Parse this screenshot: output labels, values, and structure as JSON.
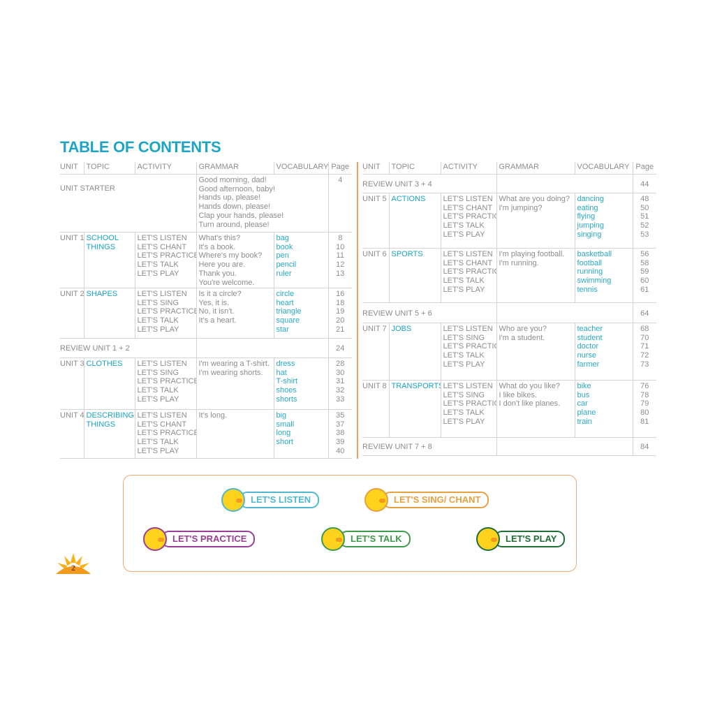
{
  "title": "TABLE OF CONTENTS",
  "headers": [
    "UNIT",
    "TOPIC",
    "ACTIVITY",
    "GRAMMAR",
    "VOCABULARY",
    "Page"
  ],
  "left_rows": [
    {
      "type": "starter",
      "label": "UNIT STARTER",
      "grammar": [
        "Good morning, dad!",
        "Good afternoon, baby!",
        "Hands up, please!",
        "Hands down, please!",
        "Clap your hands, please!",
        "Turn around, please!"
      ],
      "pages": [
        "4"
      ]
    },
    {
      "type": "unit",
      "unit": "UNIT 1",
      "topic": [
        "SCHOOL",
        "THINGS"
      ],
      "activities": [
        "LET'S LISTEN",
        "LET'S CHANT",
        "LET'S PRACTICE",
        "LET'S TALK",
        "LET'S PLAY"
      ],
      "grammar": [
        "What's this?",
        "It's a book.",
        "Where's my book?",
        "Here you are.",
        "Thank you.",
        "You're welcome."
      ],
      "vocab": [
        "bag",
        "book",
        "pen",
        "pencil",
        "ruler"
      ],
      "pages": [
        "8",
        "10",
        "11",
        "12",
        "13"
      ]
    },
    {
      "type": "unit",
      "unit": "UNIT 2",
      "topic": [
        "SHAPES"
      ],
      "activities": [
        "LET'S LISTEN",
        "LET'S SING",
        "LET'S PRACTICE",
        "LET'S TALK",
        "LET'S PLAY"
      ],
      "grammar": [
        "Is it a circle?",
        "Yes, it is.",
        "No, it isn't.",
        "It's a heart."
      ],
      "vocab": [
        "circle",
        "heart",
        "triangle",
        "square",
        "star"
      ],
      "pages": [
        "16",
        "18",
        "19",
        "20",
        "21"
      ]
    },
    {
      "type": "review",
      "label": "REVIEW  UNIT 1 + 2",
      "pages": [
        "24"
      ]
    },
    {
      "type": "unit",
      "unit": "UNIT 3",
      "topic": [
        "CLOTHES"
      ],
      "activities": [
        "LET'S LISTEN",
        "LET'S SING",
        "LET'S PRACTICE",
        "LET'S TALK",
        "LET'S PLAY"
      ],
      "grammar": [
        "I'm wearing a T-shirt.",
        "I'm wearing shorts."
      ],
      "vocab": [
        "dress",
        "hat",
        "T-shirt",
        "shoes",
        "shorts"
      ],
      "pages": [
        "28",
        "30",
        "31",
        "32",
        "33"
      ]
    },
    {
      "type": "unit",
      "unit": "UNIT 4",
      "topic": [
        "DESCRIBING",
        "THINGS"
      ],
      "activities": [
        "LET'S LISTEN",
        "LET'S CHANT",
        "LET'S PRACTICE",
        "LET'S TALK",
        "LET'S PLAY"
      ],
      "grammar": [
        "It's long."
      ],
      "vocab": [
        "big",
        "small",
        "long",
        "short"
      ],
      "pages": [
        "35",
        "37",
        "38",
        "39",
        "40"
      ]
    }
  ],
  "right_rows": [
    {
      "type": "review",
      "label": "REVIEW  UNIT 3 + 4",
      "pages": [
        "44"
      ]
    },
    {
      "type": "unit",
      "unit": "UNIT 5",
      "topic": [
        "ACTIONS"
      ],
      "activities": [
        "LET'S LISTEN",
        "LET'S CHANT",
        "LET'S PRACTICE",
        "LET'S TALK",
        "LET'S PLAY"
      ],
      "grammar": [
        "What are you doing?",
        "I'm jumping?"
      ],
      "vocab": [
        "dancing",
        "eating",
        "flying",
        "jumping",
        "singing"
      ],
      "pages": [
        "48",
        "50",
        "51",
        "52",
        "53"
      ]
    },
    {
      "type": "unit",
      "unit": "UNIT 6",
      "topic": [
        "SPORTS"
      ],
      "activities": [
        "LET'S LISTEN",
        "LET'S CHANT",
        "LET'S PRACTICE",
        "LET'S TALK",
        "LET'S PLAY"
      ],
      "grammar": [
        "I'm playing football.",
        "I'm running."
      ],
      "vocab": [
        "basketball",
        "football",
        "running",
        "swimming",
        "tennis"
      ],
      "pages": [
        "56",
        "58",
        "59",
        "60",
        "61"
      ]
    },
    {
      "type": "review",
      "label": "REVIEW  UNIT 5 + 6",
      "pages": [
        "64"
      ]
    },
    {
      "type": "unit",
      "unit": "UNIT 7",
      "topic": [
        "JOBS"
      ],
      "activities": [
        "LET'S LISTEN",
        "LET'S SING",
        "LET'S PRACTICE",
        "LET'S TALK",
        "LET'S PLAY"
      ],
      "grammar": [
        "Who are you?",
        "I'm a student."
      ],
      "vocab": [
        "teacher",
        "student",
        "doctor",
        "nurse",
        "farmer"
      ],
      "pages": [
        "68",
        "70",
        "71",
        "72",
        "73"
      ]
    },
    {
      "type": "unit",
      "unit": "UNIT 8",
      "topic": [
        "TRANSPORTS"
      ],
      "activities": [
        "LET'S LISTEN",
        "LET'S SING",
        "LET'S PRACTICE",
        "LET'S TALK",
        "LET'S PLAY"
      ],
      "grammar": [
        "What do you like?",
        "I like bikes.",
        "I don't like planes."
      ],
      "vocab": [
        "bike",
        "bus",
        "car",
        "plane",
        "train"
      ],
      "pages": [
        "76",
        "78",
        "79",
        "80",
        "81"
      ]
    },
    {
      "type": "review",
      "label": "REVIEW  UNIT 7 + 8",
      "pages": [
        "84"
      ]
    }
  ],
  "legend": [
    {
      "label": "LET'S LISTEN",
      "icon": "duck-headphones-icon",
      "color": "#4fb8d0"
    },
    {
      "label": "LET'S SING/ CHANT",
      "icon": "duck-microphone-icon",
      "color": "#e8a040"
    },
    {
      "label": "LET'S PRACTICE",
      "icon": "duck-clap-icon",
      "color": "#9a3d96"
    },
    {
      "label": "LET'S TALK",
      "icon": "two-ducks-icon",
      "color": "#3d9a4a"
    },
    {
      "label": "LET'S PLAY",
      "icon": "duck-letter-p-icon",
      "color": "#1f6e36"
    }
  ],
  "page_number": "2",
  "colors": {
    "accent": "#1ea5c6",
    "divider": "#f0a060",
    "text": "#8c8c8c"
  }
}
